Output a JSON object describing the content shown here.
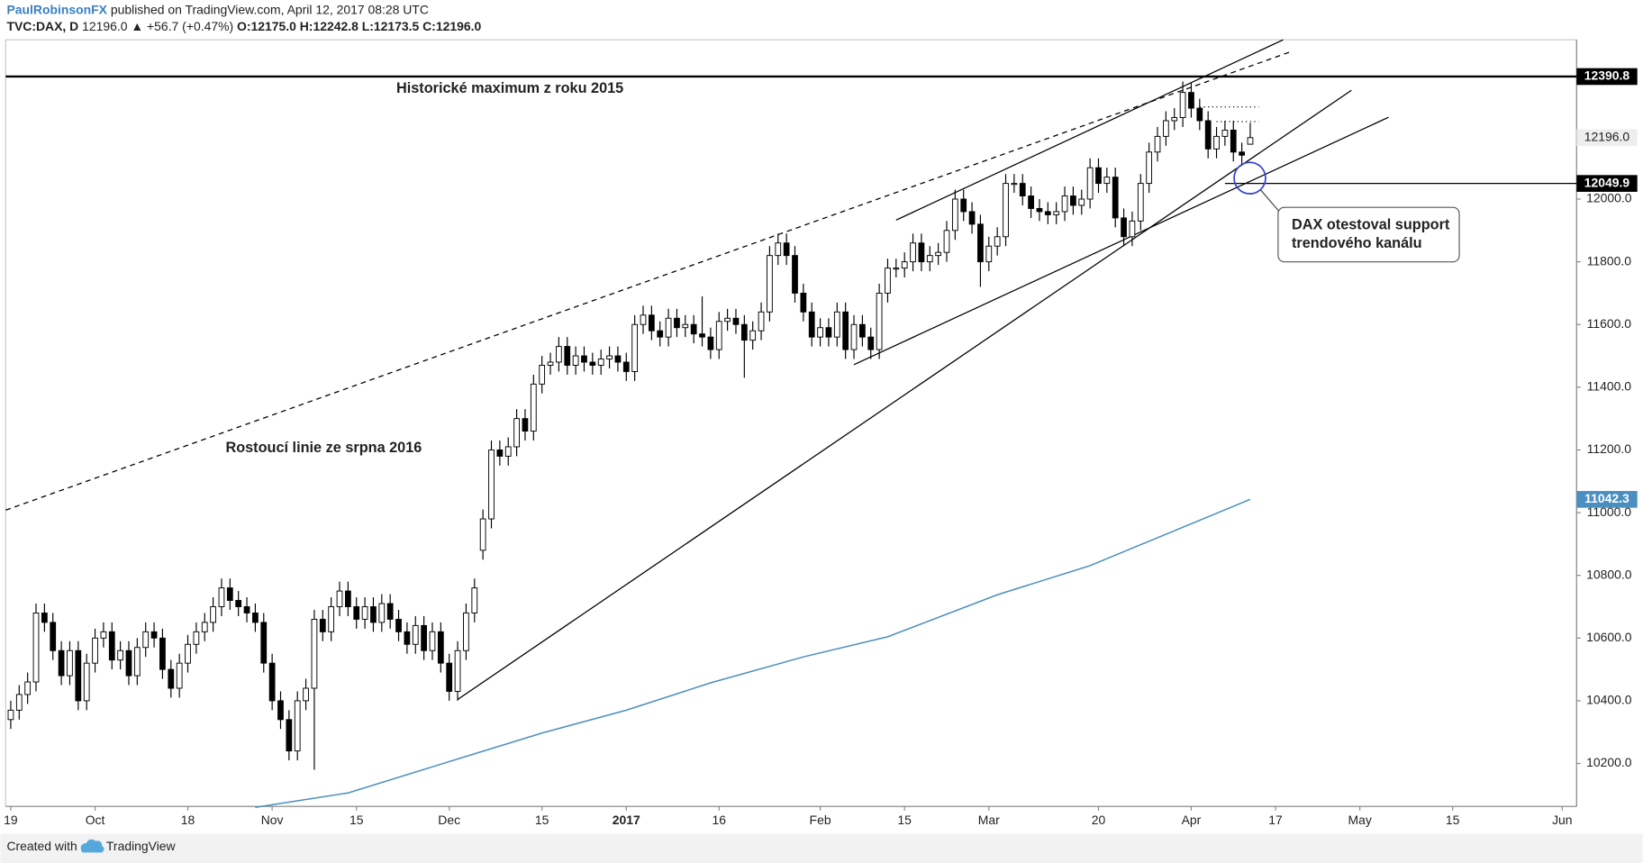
{
  "header": {
    "author": "PaulRobinsonFX",
    "published": "published on TradingView.com, April 12, 2017 08:28 UTC",
    "symbol": "TVC:DAX, D",
    "last": "12196.0",
    "change": "▲ +56.7 (+0.47%)",
    "ohlc": "O:12175.0 H:12242.8 L:12173.5 C:12196.0"
  },
  "footer": {
    "created": "Created with",
    "brand": "TradingView"
  },
  "chart_data": {
    "type": "candlestick",
    "annotations": [
      "Historické maximum z roku 2015",
      "Rostoucí linie ze srpna 2016",
      "DAX otestoval support",
      "trendového kanálu"
    ],
    "xlim": [
      -0.6,
      185.7
    ],
    "ylim": [
      10063,
      12508
    ],
    "xticks": [
      {
        "value": 0,
        "label": "19"
      },
      {
        "value": 10,
        "label": "Oct"
      },
      {
        "value": 21,
        "label": "18"
      },
      {
        "value": 31,
        "label": "Nov"
      },
      {
        "value": 41,
        "label": "15"
      },
      {
        "value": 52,
        "label": "Dec"
      },
      {
        "value": 63,
        "label": "15"
      },
      {
        "value": 73,
        "label": "2017"
      },
      {
        "value": 84,
        "label": "16"
      },
      {
        "value": 96,
        "label": "Feb"
      },
      {
        "value": 106,
        "label": "15"
      },
      {
        "value": 116,
        "label": "Mar"
      },
      {
        "value": 129,
        "label": "20"
      },
      {
        "value": 140,
        "label": "Apr"
      },
      {
        "value": 150,
        "label": "17"
      },
      {
        "value": 160,
        "label": "May"
      },
      {
        "value": 171,
        "label": "15"
      },
      {
        "value": 184,
        "label": "Jun"
      }
    ],
    "yticks": [
      {
        "value": 10200,
        "label": "10200.0"
      },
      {
        "value": 10400,
        "label": "10400.0"
      },
      {
        "value": 10600,
        "label": "10600.0"
      },
      {
        "value": 10800,
        "label": "10800.0"
      },
      {
        "value": 11000,
        "label": "11000.0"
      },
      {
        "value": 11200,
        "label": "11200.0"
      },
      {
        "value": 11400,
        "label": "11400.0"
      },
      {
        "value": 11600,
        "label": "11600.0"
      },
      {
        "value": 11800,
        "label": "11800.0"
      },
      {
        "value": 12000,
        "label": "12000.0"
      }
    ],
    "grid": false,
    "up_color": "#ffffff",
    "down_color": "#000000",
    "open": [
      10340,
      10370,
      10420,
      10460,
      10680,
      10650,
      10560,
      10480,
      10560,
      10400,
      10520,
      10600,
      10620,
      10530,
      10560,
      10480,
      10570,
      10620,
      10600,
      10500,
      10440,
      10520,
      10580,
      10620,
      10650,
      10700,
      10760,
      10720,
      10700,
      10680,
      10650,
      10520,
      10400,
      10340,
      10240,
      10400,
      10440,
      10660,
      10620,
      10700,
      10750,
      10700,
      10660,
      10700,
      10650,
      10710,
      10660,
      10620,
      10580,
      10640,
      10560,
      10620,
      10520,
      10430,
      10560,
      10680,
      10880,
      10980,
      11200,
      11180,
      11210,
      11300,
      11260,
      11410,
      11470,
      11480,
      11530,
      11470,
      11500,
      11480,
      11470,
      11490,
      11500,
      11480,
      11450,
      11600,
      11630,
      11580,
      11560,
      11620,
      11590,
      11600,
      11570,
      11560,
      11520,
      11610,
      11620,
      11600,
      11550,
      11580,
      11640,
      11820,
      11860,
      11820,
      11700,
      11640,
      11560,
      11590,
      11560,
      11640,
      11520,
      11600,
      11560,
      11520,
      11700,
      11780,
      11780,
      11800,
      11860,
      11800,
      11820,
      11830,
      11900,
      12000,
      11960,
      11920,
      11800,
      11850,
      11880,
      12050,
      12050,
      12010,
      11970,
      11960,
      11950,
      11960,
      12010,
      11980,
      12000,
      12100,
      12050,
      12070,
      11940,
      11880,
      11930,
      12050,
      12150,
      12200,
      12250,
      12260,
      12340,
      12290,
      12250,
      12160,
      12200,
      12220,
      12150,
      12175
    ],
    "high": [
      10400,
      10450,
      10490,
      10710,
      10710,
      10680,
      10590,
      10590,
      10590,
      10550,
      10630,
      10650,
      10650,
      10590,
      10590,
      10600,
      10650,
      10650,
      10630,
      10530,
      10550,
      10610,
      10650,
      10680,
      10730,
      10790,
      10790,
      10750,
      10730,
      10710,
      10680,
      10550,
      10430,
      10370,
      10430,
      10470,
      10690,
      10690,
      10730,
      10780,
      10780,
      10730,
      10730,
      10730,
      10740,
      10740,
      10690,
      10650,
      10670,
      10670,
      10650,
      10650,
      10550,
      10590,
      10710,
      10790,
      11010,
      11230,
      11230,
      11240,
      11330,
      11330,
      11440,
      11500,
      11510,
      11560,
      11560,
      11530,
      11530,
      11510,
      11520,
      11530,
      11530,
      11510,
      11630,
      11660,
      11660,
      11610,
      11650,
      11650,
      11630,
      11630,
      11690,
      11590,
      11640,
      11650,
      11650,
      11630,
      11610,
      11670,
      11850,
      11890,
      11890,
      11850,
      11730,
      11670,
      11620,
      11620,
      11670,
      11670,
      11630,
      11630,
      11590,
      11730,
      11810,
      11810,
      11830,
      11890,
      11890,
      11850,
      11860,
      11930,
      12030,
      12030,
      11990,
      11950,
      11880,
      11910,
      12080,
      12080,
      12080,
      12040,
      12000,
      11990,
      11990,
      12040,
      12040,
      12030,
      12130,
      12130,
      12100,
      12100,
      11970,
      11960,
      12080,
      12180,
      12230,
      12280,
      12290,
      12375,
      12370,
      12320,
      12280,
      12230,
      12250,
      12250,
      12180,
      12242.8
    ],
    "low": [
      10310,
      10340,
      10390,
      10430,
      10620,
      10530,
      10450,
      10450,
      10370,
      10370,
      10490,
      10570,
      10500,
      10500,
      10450,
      10450,
      10540,
      10570,
      10470,
      10410,
      10410,
      10490,
      10550,
      10590,
      10620,
      10670,
      10690,
      10670,
      10650,
      10620,
      10490,
      10370,
      10310,
      10210,
      10210,
      10370,
      10180,
      10590,
      10590,
      10670,
      10670,
      10630,
      10630,
      10620,
      10620,
      10630,
      10590,
      10550,
      10550,
      10530,
      10530,
      10490,
      10400,
      10400,
      10530,
      10650,
      10850,
      10950,
      11150,
      11150,
      11180,
      11230,
      11230,
      11380,
      11440,
      11450,
      11440,
      11440,
      11450,
      11440,
      11440,
      11460,
      11450,
      11420,
      11420,
      11570,
      11550,
      11530,
      11530,
      11560,
      11560,
      11540,
      11530,
      11490,
      11490,
      11580,
      11570,
      11430,
      11520,
      11550,
      11610,
      11790,
      11790,
      11670,
      11610,
      11530,
      11530,
      11530,
      11530,
      11490,
      11490,
      11530,
      11490,
      11490,
      11670,
      11750,
      11750,
      11770,
      11770,
      11770,
      11790,
      11800,
      11870,
      11930,
      11890,
      11720,
      11770,
      11820,
      11850,
      12020,
      11980,
      11940,
      11930,
      11920,
      11920,
      11930,
      11950,
      11950,
      11970,
      12020,
      12020,
      11910,
      11850,
      11850,
      11900,
      12020,
      12120,
      12170,
      12220,
      12230,
      12260,
      12220,
      12130,
      12130,
      12170,
      12120,
      12110,
      12173.5
    ],
    "close": [
      10370,
      10420,
      10460,
      10680,
      10650,
      10560,
      10480,
      10560,
      10400,
      10520,
      10600,
      10620,
      10530,
      10560,
      10480,
      10570,
      10620,
      10600,
      10500,
      10440,
      10520,
      10580,
      10620,
      10650,
      10700,
      10760,
      10720,
      10700,
      10680,
      10650,
      10520,
      10400,
      10340,
      10240,
      10400,
      10440,
      10660,
      10620,
      10700,
      10750,
      10700,
      10660,
      10700,
      10650,
      10710,
      10660,
      10620,
      10580,
      10640,
      10560,
      10620,
      10520,
      10430,
      10560,
      10680,
      10760,
      10980,
      11200,
      11180,
      11210,
      11300,
      11260,
      11410,
      11470,
      11480,
      11530,
      11470,
      11500,
      11480,
      11470,
      11490,
      11500,
      11480,
      11450,
      11600,
      11630,
      11580,
      11560,
      11620,
      11590,
      11600,
      11570,
      11560,
      11520,
      11610,
      11620,
      11600,
      11550,
      11580,
      11640,
      11820,
      11860,
      11820,
      11700,
      11640,
      11560,
      11590,
      11560,
      11640,
      11520,
      11600,
      11560,
      11520,
      11700,
      11780,
      11780,
      11800,
      11860,
      11800,
      11820,
      11830,
      11900,
      12000,
      11960,
      11920,
      11800,
      11850,
      11880,
      12050,
      12050,
      12010,
      11970,
      11960,
      11950,
      11960,
      12010,
      11980,
      12000,
      12100,
      12050,
      12070,
      11940,
      11880,
      11930,
      12050,
      12150,
      12200,
      12250,
      12260,
      12340,
      12290,
      12250,
      12160,
      12200,
      12220,
      12150,
      12140,
      12196
    ],
    "last_price_label": "12196.0",
    "sma": {
      "color": "#4a8fbf",
      "x": [
        29,
        40,
        52,
        63,
        73,
        83,
        94,
        104,
        117,
        128,
        137,
        147
      ],
      "values": [
        10060,
        10106,
        10206,
        10297,
        10370,
        10457,
        10540,
        10604,
        10738,
        10831,
        10931,
        11042.3
      ]
    },
    "trendlines": [
      {
        "style": "dashed",
        "x": [
          -0.6,
          151.6
        ],
        "values": [
          11008,
          12468
        ]
      },
      {
        "style": "solid",
        "x": [
          105,
          150.9
        ],
        "values": [
          11933,
          12508
        ]
      },
      {
        "style": "solid",
        "x": [
          53,
          159
        ],
        "values": [
          10404,
          12347
        ]
      },
      {
        "style": "solid",
        "x": [
          100,
          163.4
        ],
        "values": [
          11472,
          12261
        ]
      },
      {
        "style": "dotted",
        "x": [
          141,
          148
        ],
        "values": [
          12294,
          12294
        ]
      },
      {
        "style": "dotted",
        "x": [
          143,
          148
        ],
        "values": [
          12247,
          12247
        ]
      }
    ],
    "levels": [
      {
        "value": 12390.8,
        "x_from": -0.6,
        "color": "#000000"
      },
      {
        "value": 12049.9,
        "x_from": 144,
        "color": "#000000"
      }
    ]
  }
}
